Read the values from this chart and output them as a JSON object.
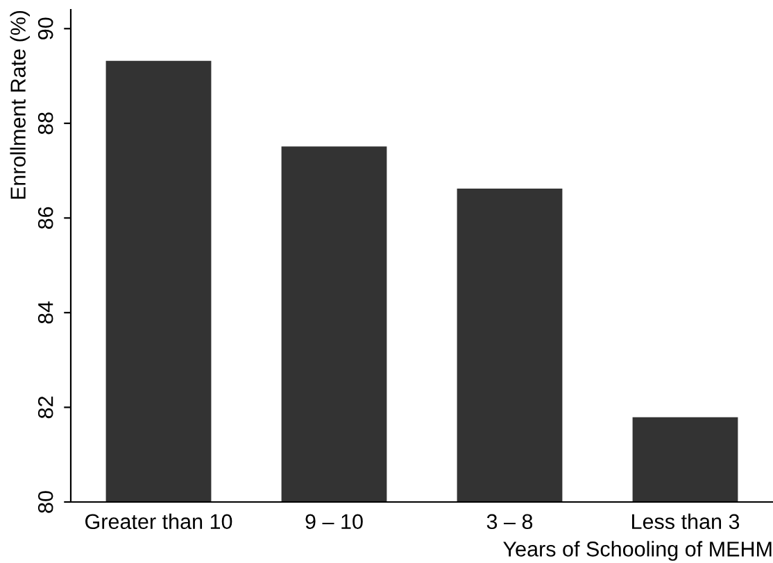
{
  "chart_data": {
    "type": "bar",
    "categories": [
      "Greater than 10",
      "9 – 10",
      "3 – 8",
      "Less than 3"
    ],
    "values": [
      89.32,
      87.51,
      86.62,
      81.79
    ],
    "color": "#333333",
    "xlabel": "Years of Schooling of MEHM",
    "ylabel": "Enrollment Rate (%)",
    "ylim": [
      80,
      90.4
    ],
    "yticks": [
      80,
      82,
      84,
      86,
      88,
      90
    ],
    "grid": false
  }
}
